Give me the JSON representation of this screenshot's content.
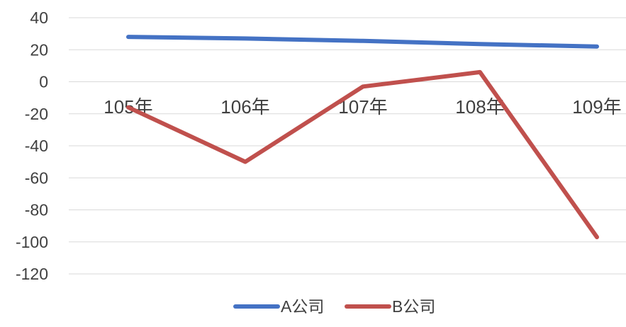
{
  "chart_data": {
    "type": "line",
    "categories": [
      "105年",
      "106年",
      "107年",
      "108年",
      "109年"
    ],
    "series": [
      {
        "name": "A公司",
        "values": [
          28,
          27,
          25.5,
          23.5,
          22
        ],
        "color": "#4472C4"
      },
      {
        "name": "B公司",
        "values": [
          -16,
          -50,
          -3,
          6,
          -97
        ],
        "color": "#C0504D"
      }
    ],
    "ylim": [
      -120,
      40
    ],
    "yticks": [
      40,
      20,
      0,
      -20,
      -40,
      -60,
      -80,
      -100,
      -120
    ],
    "grid": true,
    "legend_position": "bottom",
    "gridline_color": "#d9d9d9",
    "text_color": "#404040"
  }
}
